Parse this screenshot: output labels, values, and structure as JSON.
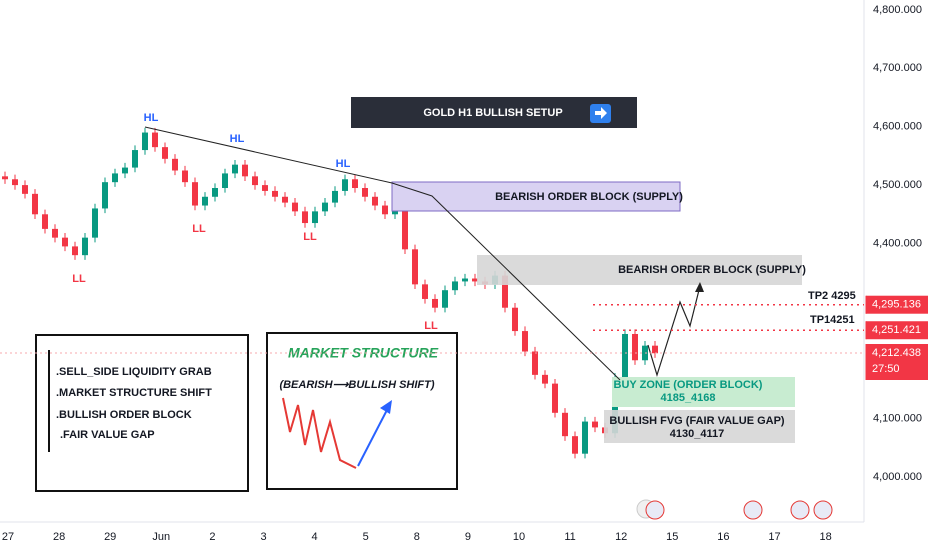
{
  "chart_data": {
    "type": "candlestick",
    "title": "GOLD H1 BULLISH SETUP",
    "categories": [
      "27",
      "28",
      "29",
      "Jun",
      "2",
      "3",
      "4",
      "5",
      "8",
      "9",
      "10",
      "11",
      "12",
      "15",
      "16",
      "17",
      "18"
    ],
    "open": [
      4515,
      4510,
      4500,
      4485,
      4450,
      4425,
      4410,
      4395,
      4380,
      4410,
      4460,
      4505,
      4520,
      4530,
      4560,
      4590,
      4565,
      4545,
      4525,
      4505,
      4465,
      4480,
      4495,
      4520,
      4535,
      4515,
      4500,
      4490,
      4480,
      4470,
      4455,
      4435,
      4455,
      4470,
      4490,
      4510,
      4495,
      4480,
      4465,
      4450,
      4485,
      4390,
      4330,
      4305,
      4290,
      4320,
      4335,
      4340,
      4335,
      4330,
      4345,
      4290,
      4250,
      4215,
      4175,
      4160,
      4110,
      4070,
      4040,
      4095,
      4085,
      4075,
      4170,
      4245,
      4200,
      4225
    ],
    "high": [
      4523,
      4518,
      4508,
      4493,
      4458,
      4433,
      4418,
      4403,
      4418,
      4468,
      4513,
      4528,
      4538,
      4568,
      4598,
      4598,
      4573,
      4553,
      4533,
      4513,
      4488,
      4503,
      4528,
      4543,
      4543,
      4523,
      4508,
      4498,
      4488,
      4478,
      4463,
      4463,
      4478,
      4498,
      4518,
      4518,
      4503,
      4488,
      4473,
      4493,
      4493,
      4398,
      4338,
      4313,
      4328,
      4343,
      4348,
      4348,
      4343,
      4353,
      4353,
      4298,
      4258,
      4223,
      4183,
      4168,
      4118,
      4078,
      4103,
      4103,
      4093,
      4178,
      4253,
      4253,
      4233,
      4233
    ],
    "low": [
      4502,
      4492,
      4477,
      4442,
      4417,
      4402,
      4387,
      4372,
      4372,
      4402,
      4452,
      4497,
      4512,
      4522,
      4552,
      4557,
      4537,
      4517,
      4497,
      4457,
      4457,
      4472,
      4487,
      4512,
      4507,
      4492,
      4482,
      4472,
      4462,
      4447,
      4427,
      4427,
      4447,
      4462,
      4482,
      4487,
      4472,
      4457,
      4442,
      4442,
      4382,
      4322,
      4297,
      4282,
      4282,
      4312,
      4327,
      4327,
      4322,
      4322,
      4282,
      4242,
      4207,
      4167,
      4152,
      4102,
      4062,
      4032,
      4032,
      4077,
      4067,
      4067,
      4162,
      4192,
      4192,
      4204
    ],
    "close": [
      4510,
      4500,
      4485,
      4450,
      4425,
      4410,
      4395,
      4380,
      4410,
      4460,
      4505,
      4520,
      4530,
      4560,
      4590,
      4565,
      4545,
      4525,
      4505,
      4465,
      4480,
      4495,
      4520,
      4535,
      4515,
      4500,
      4490,
      4480,
      4470,
      4455,
      4435,
      4455,
      4470,
      4490,
      4510,
      4495,
      4480,
      4465,
      4450,
      4485,
      4390,
      4330,
      4305,
      4290,
      4320,
      4335,
      4340,
      4335,
      4330,
      4345,
      4290,
      4250,
      4215,
      4175,
      4160,
      4110,
      4070,
      4040,
      4095,
      4085,
      4075,
      4170,
      4245,
      4200,
      4225,
      4212
    ],
    "up_color": "#089981",
    "down_color": "#f23645",
    "ylim": [
      3923,
      4817
    ],
    "yticks": [
      {
        "value": 4000,
        "label": "4,000.000"
      },
      {
        "value": 4100,
        "label": "4,100.000"
      },
      {
        "value": 4200,
        "label": "4,200.000"
      },
      {
        "value": 4300,
        "label": "4,300.000"
      },
      {
        "value": 4400,
        "label": "4,400.000"
      },
      {
        "value": 4500,
        "label": "4,500.000"
      },
      {
        "value": 4600,
        "label": "4,600.000"
      },
      {
        "value": 4700,
        "label": "4,700.000"
      },
      {
        "value": 4800,
        "label": "4,800.000"
      }
    ],
    "grid": false,
    "price_lines": [
      {
        "value": 4295.136,
        "label": "4,295.136",
        "color": "#f23645"
      },
      {
        "value": 4251.421,
        "label": "4,251.421",
        "color": "#f23645"
      },
      {
        "value": 4212.438,
        "label": "4,212.438",
        "color": "#f23645",
        "countdown": "27:50"
      }
    ],
    "annotations": {
      "supply_zone_1": "BEARISH ORDER BLOCK (SUPPLY)",
      "supply_zone_2": "BEARISH ORDER BLOCK (SUPPLY)",
      "buy_zone": "BUY ZONE (ORDER BLOCK)",
      "buy_zone_range": "4185_4168",
      "fvg": "BULLISH FVG (FAIR VALUE GAP)",
      "fvg_range": "4130_4117",
      "tp2": "TP2 4295",
      "tp1": "TP14251",
      "structure_labels": [
        "HL",
        "HL",
        "HL",
        "LL",
        "LL",
        "LL",
        "LL"
      ],
      "checklist": [
        ".SELL_SIDE LIQUIDITY GRAB",
        ".MARKET STRUCTURE SHIFT",
        ".BULLISH ORDER BLOCK",
        ".FAIR VALUE GAP"
      ],
      "structure_title": "MARKET STRUCTURE",
      "structure_subtitle": "(BEARISH⟶BULLISH SHIFT)"
    }
  }
}
